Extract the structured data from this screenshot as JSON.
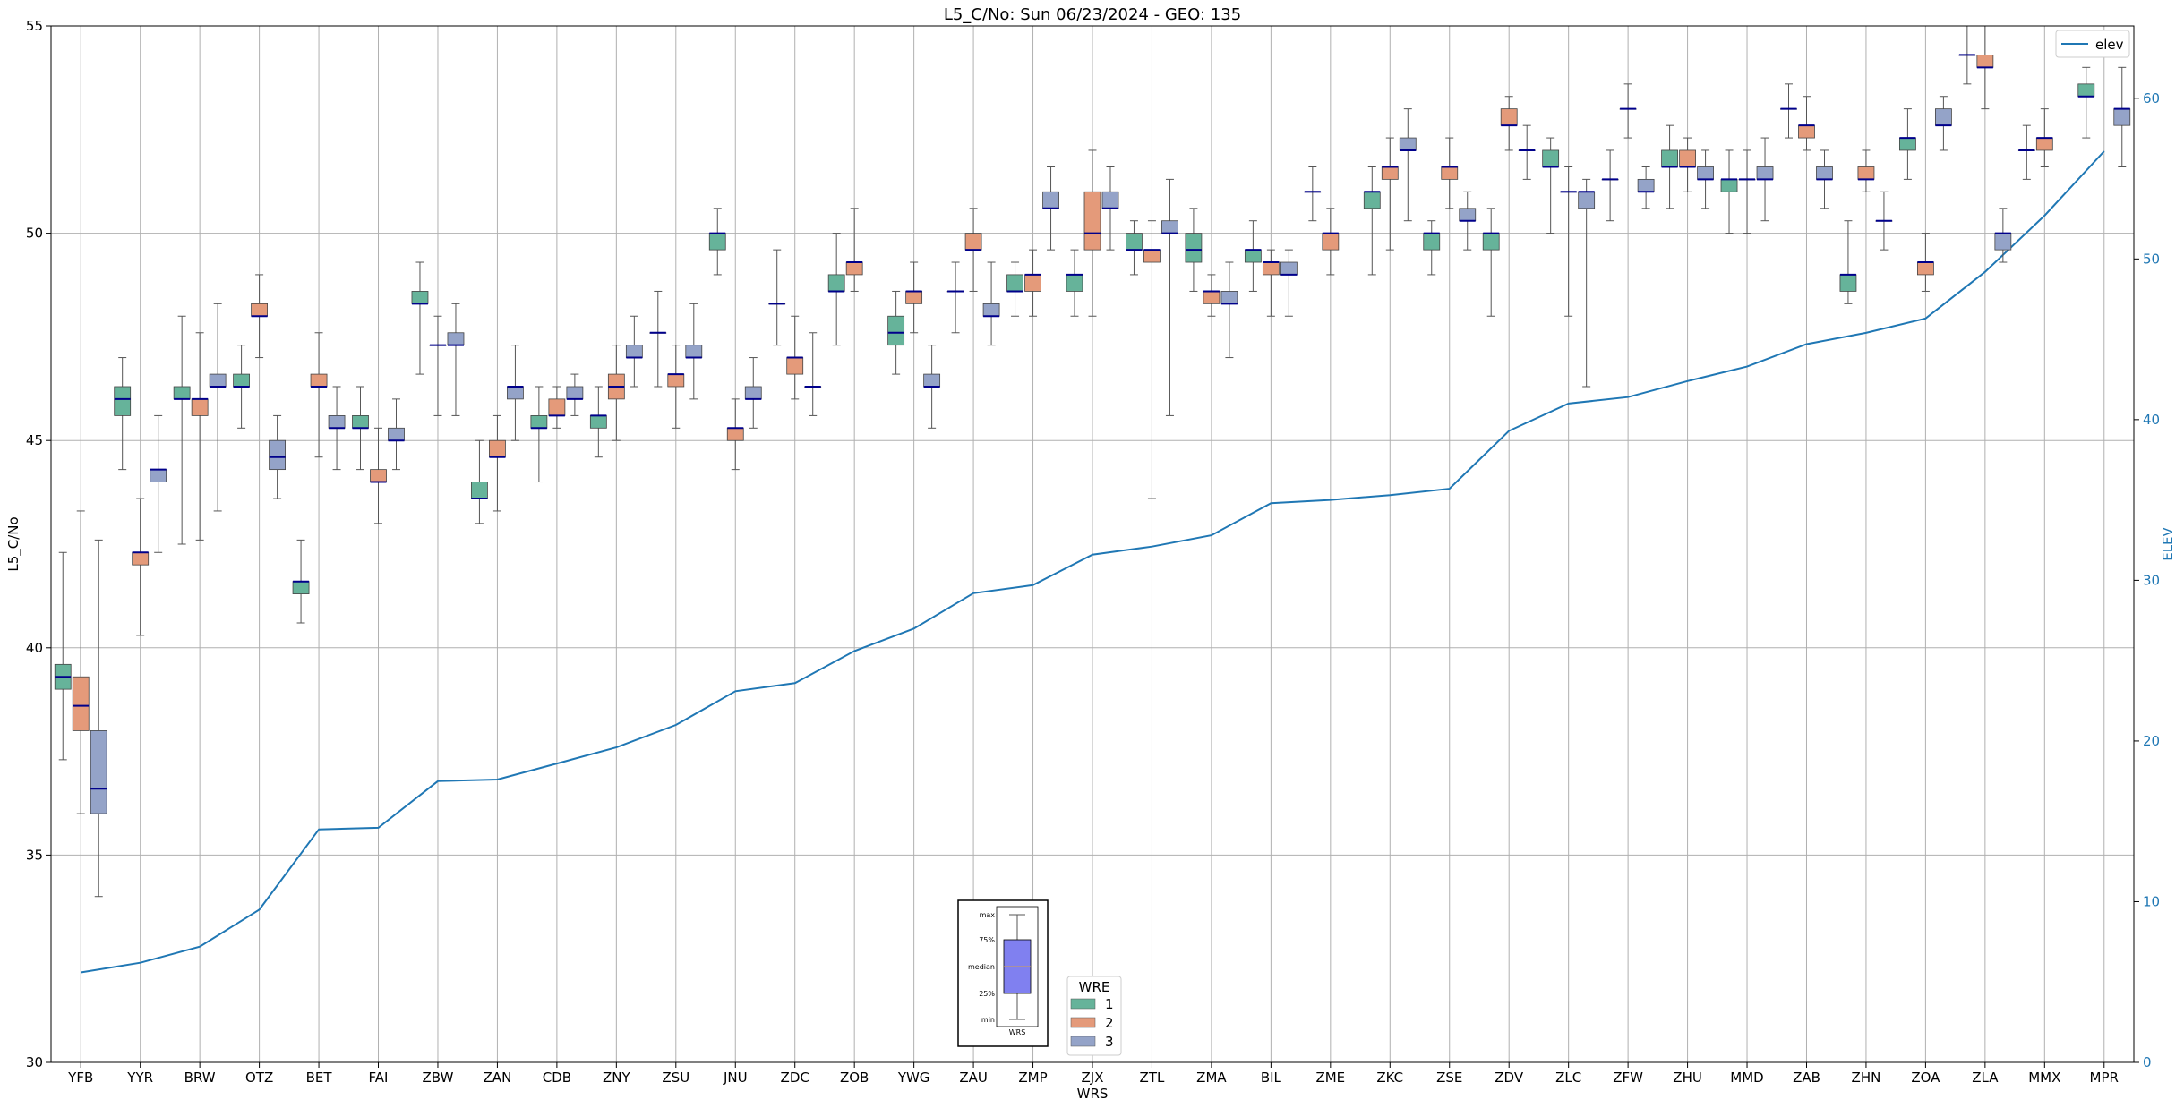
{
  "chart_data": {
    "type": "box",
    "title": "L5_C/No: Sun 06/23/2024 - GEO: 135",
    "xlabel": "WRS",
    "ylabel": "L5_C/No",
    "ylabel_right": "ELEV",
    "ylim": [
      30,
      55
    ],
    "ylim_right": [
      0,
      64.5
    ],
    "yticks": [
      30,
      35,
      40,
      45,
      50,
      55
    ],
    "yticks_right": [
      0,
      10,
      20,
      30,
      40,
      50,
      60
    ],
    "grid": true,
    "categories": [
      "YFB",
      "YYR",
      "BRW",
      "OTZ",
      "BET",
      "FAI",
      "ZBW",
      "ZAN",
      "CDB",
      "ZNY",
      "ZSU",
      "JNU",
      "ZDC",
      "ZOB",
      "YWG",
      "ZAU",
      "ZMP",
      "ZJX",
      "ZTL",
      "ZMA",
      "BIL",
      "ZME",
      "ZKC",
      "ZSE",
      "ZDV",
      "ZLC",
      "ZFW",
      "ZHU",
      "MMD",
      "ZAB",
      "ZHN",
      "ZOA",
      "ZLA",
      "MMX",
      "MPR"
    ],
    "elev": [
      5.6,
      6.2,
      7.2,
      9.5,
      14.5,
      14.6,
      17.5,
      17.6,
      18.6,
      19.6,
      21.0,
      23.1,
      23.6,
      25.6,
      27.0,
      29.2,
      29.7,
      31.6,
      32.1,
      32.8,
      34.8,
      35.0,
      35.3,
      35.7,
      39.3,
      41.0,
      41.4,
      42.4,
      43.3,
      44.7,
      45.4,
      46.3,
      49.2,
      52.7,
      56.7
    ],
    "series": [
      {
        "name": "1",
        "color": "#66b39a",
        "boxes": [
          {
            "cat": "YFB",
            "min": 37.3,
            "q1": 39.0,
            "med": 39.3,
            "q3": 39.6,
            "max": 42.3
          },
          {
            "cat": "YYR",
            "min": 44.3,
            "q1": 45.6,
            "med": 46.0,
            "q3": 46.3,
            "max": 47.0
          },
          {
            "cat": "BRW",
            "min": 42.5,
            "q1": 46.0,
            "med": 46.0,
            "q3": 46.3,
            "max": 48.0
          },
          {
            "cat": "OTZ",
            "min": 45.3,
            "q1": 46.3,
            "med": 46.3,
            "q3": 46.6,
            "max": 47.3
          },
          {
            "cat": "BET",
            "min": 40.6,
            "q1": 41.3,
            "med": 41.6,
            "q3": 41.6,
            "max": 42.6
          },
          {
            "cat": "FAI",
            "min": 44.3,
            "q1": 45.3,
            "med": 45.3,
            "q3": 45.6,
            "max": 46.3
          },
          {
            "cat": "ZBW",
            "min": 46.6,
            "q1": 48.3,
            "med": 48.3,
            "q3": 48.6,
            "max": 49.3
          },
          {
            "cat": "ZAN",
            "min": 43.0,
            "q1": 43.6,
            "med": 43.6,
            "q3": 44.0,
            "max": 45.0
          },
          {
            "cat": "CDB",
            "min": 44.0,
            "q1": 45.3,
            "med": 45.3,
            "q3": 45.6,
            "max": 46.3
          },
          {
            "cat": "ZNY",
            "min": 44.6,
            "q1": 45.3,
            "med": 45.6,
            "q3": 45.6,
            "max": 46.3
          },
          {
            "cat": "ZSU",
            "min": 46.3,
            "q1": 47.6,
            "med": 47.6,
            "q3": 47.6,
            "max": 48.6
          },
          {
            "cat": "JNU",
            "min": 49.0,
            "q1": 49.6,
            "med": 50.0,
            "q3": 50.0,
            "max": 50.6
          },
          {
            "cat": "ZDC",
            "min": 47.3,
            "q1": 48.3,
            "med": 48.3,
            "q3": 48.3,
            "max": 49.6
          },
          {
            "cat": "ZOB",
            "min": 47.3,
            "q1": 48.6,
            "med": 48.6,
            "q3": 49.0,
            "max": 50.0
          },
          {
            "cat": "YWG",
            "min": 46.6,
            "q1": 47.3,
            "med": 47.6,
            "q3": 48.0,
            "max": 48.6
          },
          {
            "cat": "ZAU",
            "min": 47.6,
            "q1": 48.6,
            "med": 48.6,
            "q3": 48.6,
            "max": 49.3
          },
          {
            "cat": "ZMP",
            "min": 48.0,
            "q1": 48.6,
            "med": 48.6,
            "q3": 49.0,
            "max": 49.3
          },
          {
            "cat": "ZJX",
            "min": 48.0,
            "q1": 48.6,
            "med": 49.0,
            "q3": 49.0,
            "max": 49.6
          },
          {
            "cat": "ZTL",
            "min": 49.0,
            "q1": 49.6,
            "med": 49.6,
            "q3": 50.0,
            "max": 50.3
          },
          {
            "cat": "ZMA",
            "min": 48.6,
            "q1": 49.3,
            "med": 49.6,
            "q3": 50.0,
            "max": 50.6
          },
          {
            "cat": "BIL",
            "min": 48.6,
            "q1": 49.3,
            "med": 49.6,
            "q3": 49.6,
            "max": 50.3
          },
          {
            "cat": "ZME",
            "min": 50.3,
            "q1": 51.0,
            "med": 51.0,
            "q3": 51.0,
            "max": 51.6
          },
          {
            "cat": "ZKC",
            "min": 49.0,
            "q1": 50.6,
            "med": 51.0,
            "q3": 51.0,
            "max": 51.6
          },
          {
            "cat": "ZSE",
            "min": 49.0,
            "q1": 49.6,
            "med": 50.0,
            "q3": 50.0,
            "max": 50.3
          },
          {
            "cat": "ZDV",
            "min": 48.0,
            "q1": 49.6,
            "med": 50.0,
            "q3": 50.0,
            "max": 50.6
          },
          {
            "cat": "ZLC",
            "min": 50.0,
            "q1": 51.6,
            "med": 51.6,
            "q3": 52.0,
            "max": 52.3
          },
          {
            "cat": "ZFW",
            "min": 50.3,
            "q1": 51.3,
            "med": 51.3,
            "q3": 51.3,
            "max": 52.0
          },
          {
            "cat": "ZHU",
            "min": 50.6,
            "q1": 51.6,
            "med": 51.6,
            "q3": 52.0,
            "max": 52.6
          },
          {
            "cat": "MMD",
            "min": 50.0,
            "q1": 51.0,
            "med": 51.3,
            "q3": 51.3,
            "max": 52.0
          },
          {
            "cat": "ZAB",
            "min": 52.3,
            "q1": 53.0,
            "med": 53.0,
            "q3": 53.0,
            "max": 53.6
          },
          {
            "cat": "ZHN",
            "min": 48.3,
            "q1": 48.6,
            "med": 49.0,
            "q3": 49.0,
            "max": 50.3
          },
          {
            "cat": "ZOA",
            "min": 51.3,
            "q1": 52.0,
            "med": 52.3,
            "q3": 52.3,
            "max": 53.0
          },
          {
            "cat": "ZLA",
            "min": 53.6,
            "q1": 54.3,
            "med": 54.3,
            "q3": 54.3,
            "max": 55.0
          },
          {
            "cat": "MMX",
            "min": 51.3,
            "q1": 52.0,
            "med": 52.0,
            "q3": 52.0,
            "max": 52.6
          },
          {
            "cat": "MPR",
            "min": 52.3,
            "q1": 53.3,
            "med": 53.3,
            "q3": 53.6,
            "max": 54.0
          }
        ]
      },
      {
        "name": "2",
        "color": "#e49a7a",
        "boxes": [
          {
            "cat": "YFB",
            "min": 36.0,
            "q1": 38.0,
            "med": 38.6,
            "q3": 39.3,
            "max": 43.3
          },
          {
            "cat": "YYR",
            "min": 40.3,
            "q1": 42.0,
            "med": 42.3,
            "q3": 42.3,
            "max": 43.6
          },
          {
            "cat": "BRW",
            "min": 42.6,
            "q1": 45.6,
            "med": 46.0,
            "q3": 46.0,
            "max": 47.6
          },
          {
            "cat": "OTZ",
            "min": 47.0,
            "q1": 48.0,
            "med": 48.0,
            "q3": 48.3,
            "max": 49.0
          },
          {
            "cat": "BET",
            "min": 44.6,
            "q1": 46.3,
            "med": 46.3,
            "q3": 46.6,
            "max": 47.6
          },
          {
            "cat": "FAI",
            "min": 43.0,
            "q1": 44.0,
            "med": 44.0,
            "q3": 44.3,
            "max": 45.3
          },
          {
            "cat": "ZBW",
            "min": 45.6,
            "q1": 47.3,
            "med": 47.3,
            "q3": 47.3,
            "max": 48.0
          },
          {
            "cat": "ZAN",
            "min": 43.3,
            "q1": 44.6,
            "med": 44.6,
            "q3": 45.0,
            "max": 45.6
          },
          {
            "cat": "CDB",
            "min": 45.3,
            "q1": 45.6,
            "med": 45.6,
            "q3": 46.0,
            "max": 46.3
          },
          {
            "cat": "ZNY",
            "min": 45.0,
            "q1": 46.0,
            "med": 46.3,
            "q3": 46.6,
            "max": 47.3
          },
          {
            "cat": "ZSU",
            "min": 45.3,
            "q1": 46.3,
            "med": 46.6,
            "q3": 46.6,
            "max": 47.3
          },
          {
            "cat": "JNU",
            "min": 44.3,
            "q1": 45.0,
            "med": 45.3,
            "q3": 45.3,
            "max": 46.0
          },
          {
            "cat": "ZDC",
            "min": 46.0,
            "q1": 46.6,
            "med": 47.0,
            "q3": 47.0,
            "max": 48.0
          },
          {
            "cat": "ZOB",
            "min": 48.6,
            "q1": 49.0,
            "med": 49.3,
            "q3": 49.3,
            "max": 50.6
          },
          {
            "cat": "YWG",
            "min": 47.6,
            "q1": 48.3,
            "med": 48.6,
            "q3": 48.6,
            "max": 49.3
          },
          {
            "cat": "ZAU",
            "min": 48.6,
            "q1": 49.6,
            "med": 49.6,
            "q3": 50.0,
            "max": 50.6
          },
          {
            "cat": "ZMP",
            "min": 48.0,
            "q1": 48.6,
            "med": 49.0,
            "q3": 49.0,
            "max": 49.6
          },
          {
            "cat": "ZJX",
            "min": 48.0,
            "q1": 49.6,
            "med": 50.0,
            "q3": 51.0,
            "max": 52.0
          },
          {
            "cat": "ZTL",
            "min": 43.6,
            "q1": 49.3,
            "med": 49.6,
            "q3": 49.6,
            "max": 50.3
          },
          {
            "cat": "ZMA",
            "min": 48.0,
            "q1": 48.3,
            "med": 48.6,
            "q3": 48.6,
            "max": 49.0
          },
          {
            "cat": "BIL",
            "min": 48.0,
            "q1": 49.0,
            "med": 49.3,
            "q3": 49.3,
            "max": 49.6
          },
          {
            "cat": "ZME",
            "min": 49.0,
            "q1": 49.6,
            "med": 50.0,
            "q3": 50.0,
            "max": 50.6
          },
          {
            "cat": "ZKC",
            "min": 49.6,
            "q1": 51.3,
            "med": 51.6,
            "q3": 51.6,
            "max": 52.3
          },
          {
            "cat": "ZSE",
            "min": 50.6,
            "q1": 51.3,
            "med": 51.6,
            "q3": 51.6,
            "max": 52.3
          },
          {
            "cat": "ZDV",
            "min": 52.0,
            "q1": 52.6,
            "med": 52.6,
            "q3": 53.0,
            "max": 53.3
          },
          {
            "cat": "ZLC",
            "min": 48.0,
            "q1": 51.0,
            "med": 51.0,
            "q3": 51.0,
            "max": 51.6
          },
          {
            "cat": "ZFW",
            "min": 52.3,
            "q1": 53.0,
            "med": 53.0,
            "q3": 53.0,
            "max": 53.6
          },
          {
            "cat": "ZHU",
            "min": 51.0,
            "q1": 51.6,
            "med": 51.6,
            "q3": 52.0,
            "max": 52.3
          },
          {
            "cat": "MMD",
            "min": 50.0,
            "q1": 51.3,
            "med": 51.3,
            "q3": 51.3,
            "max": 52.0
          },
          {
            "cat": "ZAB",
            "min": 52.0,
            "q1": 52.3,
            "med": 52.6,
            "q3": 52.6,
            "max": 53.3
          },
          {
            "cat": "ZHN",
            "min": 51.0,
            "q1": 51.3,
            "med": 51.3,
            "q3": 51.6,
            "max": 52.0
          },
          {
            "cat": "ZOA",
            "min": 48.6,
            "q1": 49.0,
            "med": 49.3,
            "q3": 49.3,
            "max": 50.0
          },
          {
            "cat": "ZLA",
            "min": 53.0,
            "q1": 54.0,
            "med": 54.0,
            "q3": 54.3,
            "max": 55.0
          },
          {
            "cat": "MMX",
            "min": 51.6,
            "q1": 52.0,
            "med": 52.3,
            "q3": 52.3,
            "max": 53.0
          }
        ]
      },
      {
        "name": "3",
        "color": "#94a3c8",
        "boxes": [
          {
            "cat": "YFB",
            "min": 34.0,
            "q1": 36.0,
            "med": 36.6,
            "q3": 38.0,
            "max": 42.6
          },
          {
            "cat": "YYR",
            "min": 42.3,
            "q1": 44.0,
            "med": 44.3,
            "q3": 44.3,
            "max": 45.6
          },
          {
            "cat": "BRW",
            "min": 43.3,
            "q1": 46.3,
            "med": 46.3,
            "q3": 46.6,
            "max": 48.3
          },
          {
            "cat": "OTZ",
            "min": 43.6,
            "q1": 44.3,
            "med": 44.6,
            "q3": 45.0,
            "max": 45.6
          },
          {
            "cat": "BET",
            "min": 44.3,
            "q1": 45.3,
            "med": 45.3,
            "q3": 45.6,
            "max": 46.3
          },
          {
            "cat": "FAI",
            "min": 44.3,
            "q1": 45.0,
            "med": 45.0,
            "q3": 45.3,
            "max": 46.0
          },
          {
            "cat": "ZBW",
            "min": 45.6,
            "q1": 47.3,
            "med": 47.3,
            "q3": 47.6,
            "max": 48.3
          },
          {
            "cat": "ZAN",
            "min": 45.0,
            "q1": 46.0,
            "med": 46.3,
            "q3": 46.3,
            "max": 47.3
          },
          {
            "cat": "CDB",
            "min": 45.6,
            "q1": 46.0,
            "med": 46.0,
            "q3": 46.3,
            "max": 46.6
          },
          {
            "cat": "ZNY",
            "min": 46.3,
            "q1": 47.0,
            "med": 47.0,
            "q3": 47.3,
            "max": 48.0
          },
          {
            "cat": "ZSU",
            "min": 46.0,
            "q1": 47.0,
            "med": 47.0,
            "q3": 47.3,
            "max": 48.3
          },
          {
            "cat": "JNU",
            "min": 45.3,
            "q1": 46.0,
            "med": 46.0,
            "q3": 46.3,
            "max": 47.0
          },
          {
            "cat": "ZDC",
            "min": 45.6,
            "q1": 46.3,
            "med": 46.3,
            "q3": 46.3,
            "max": 47.6
          },
          {
            "cat": "YWG",
            "min": 45.3,
            "q1": 46.3,
            "med": 46.3,
            "q3": 46.6,
            "max": 47.3
          },
          {
            "cat": "ZAU",
            "min": 47.3,
            "q1": 48.0,
            "med": 48.0,
            "q3": 48.3,
            "max": 49.3
          },
          {
            "cat": "ZMP",
            "min": 49.6,
            "q1": 50.6,
            "med": 50.6,
            "q3": 51.0,
            "max": 51.6
          },
          {
            "cat": "ZJX",
            "min": 49.6,
            "q1": 50.6,
            "med": 50.6,
            "q3": 51.0,
            "max": 51.6
          },
          {
            "cat": "ZTL",
            "min": 45.6,
            "q1": 50.0,
            "med": 50.0,
            "q3": 50.3,
            "max": 51.3
          },
          {
            "cat": "ZMA",
            "min": 47.0,
            "q1": 48.3,
            "med": 48.3,
            "q3": 48.6,
            "max": 49.3
          },
          {
            "cat": "BIL",
            "min": 48.0,
            "q1": 49.0,
            "med": 49.0,
            "q3": 49.3,
            "max": 49.6
          },
          {
            "cat": "ZKC",
            "min": 50.3,
            "q1": 52.0,
            "med": 52.0,
            "q3": 52.3,
            "max": 53.0
          },
          {
            "cat": "ZSE",
            "min": 49.6,
            "q1": 50.3,
            "med": 50.3,
            "q3": 50.6,
            "max": 51.0
          },
          {
            "cat": "ZDV",
            "min": 51.3,
            "q1": 52.0,
            "med": 52.0,
            "q3": 52.0,
            "max": 52.6
          },
          {
            "cat": "ZLC",
            "min": 46.3,
            "q1": 50.6,
            "med": 51.0,
            "q3": 51.0,
            "max": 51.3
          },
          {
            "cat": "ZFW",
            "min": 50.6,
            "q1": 51.0,
            "med": 51.0,
            "q3": 51.3,
            "max": 51.6
          },
          {
            "cat": "ZHU",
            "min": 50.6,
            "q1": 51.3,
            "med": 51.3,
            "q3": 51.6,
            "max": 52.0
          },
          {
            "cat": "MMD",
            "min": 50.3,
            "q1": 51.3,
            "med": 51.3,
            "q3": 51.6,
            "max": 52.3
          },
          {
            "cat": "ZAB",
            "min": 50.6,
            "q1": 51.3,
            "med": 51.3,
            "q3": 51.6,
            "max": 52.0
          },
          {
            "cat": "ZHN",
            "min": 49.6,
            "q1": 50.3,
            "med": 50.3,
            "q3": 50.3,
            "max": 51.0
          },
          {
            "cat": "ZOA",
            "min": 52.0,
            "q1": 52.6,
            "med": 52.6,
            "q3": 53.0,
            "max": 53.3
          },
          {
            "cat": "ZLA",
            "min": 49.3,
            "q1": 49.6,
            "med": 50.0,
            "q3": 50.0,
            "max": 50.6
          },
          {
            "cat": "MPR",
            "min": 51.6,
            "q1": 52.6,
            "med": 53.0,
            "q3": 53.0,
            "max": 54.0
          }
        ]
      }
    ],
    "legend": {
      "title": "WRE",
      "entries": [
        "1",
        "2",
        "3"
      ],
      "placement": "bottom-center"
    },
    "line_legend": {
      "label": "elev",
      "placement": "top-right"
    },
    "key_box": {
      "labels": [
        "max",
        "75%",
        "median",
        "25%",
        "min"
      ],
      "xlabel": "WRS"
    },
    "colors": {
      "elev_line": "#1f77b4",
      "median": "#00008b",
      "key_fill": "#8080f0"
    }
  }
}
